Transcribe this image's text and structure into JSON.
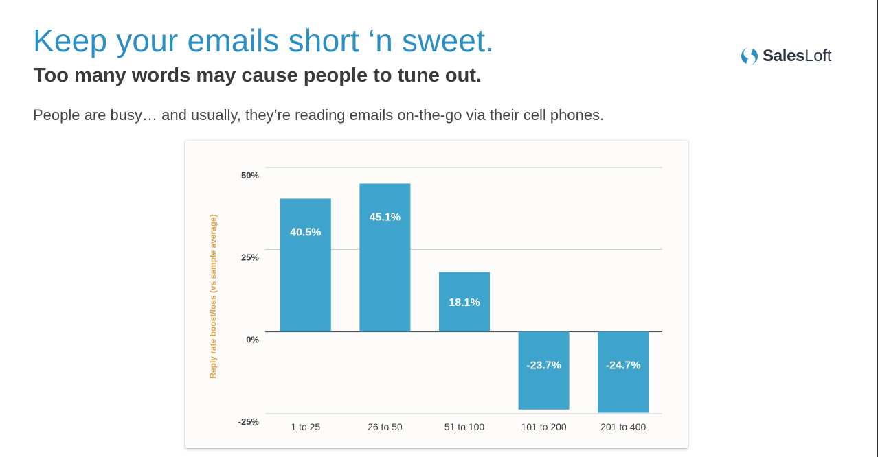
{
  "slide": {
    "title": "Keep your emails short ‘n sweet.",
    "subtitle": "Too many words may cause people to tune out.",
    "body": "People are busy… and usually, they’re reading emails on-the-go via their cell phones.",
    "logo": {
      "text_bold": "Sales",
      "text_regular": "Loft",
      "icon": "salesloft-s-icon"
    }
  },
  "colors": {
    "accent": "#2b8fc4",
    "bar": "#3fa4cc",
    "axis_label": "#e0a34a"
  },
  "chart_data": {
    "type": "bar",
    "title": "",
    "xlabel": "",
    "ylabel": "Reply rate boost/loss (vs sample average)",
    "categories": [
      "1 to 25",
      "26 to 50",
      "51 to 100",
      "101 to 200",
      "201 to 400"
    ],
    "values": [
      40.5,
      45.1,
      18.1,
      -23.7,
      -24.7
    ],
    "data_labels": [
      "40.5%",
      "45.1%",
      "18.1%",
      "-23.7%",
      "-24.7%"
    ],
    "yticks": [
      50,
      25,
      0,
      -25
    ],
    "ytick_labels": [
      "50%",
      "25%",
      "0%",
      "-25%"
    ],
    "ylim": [
      -25,
      50
    ],
    "grid": true,
    "legend": "none"
  }
}
